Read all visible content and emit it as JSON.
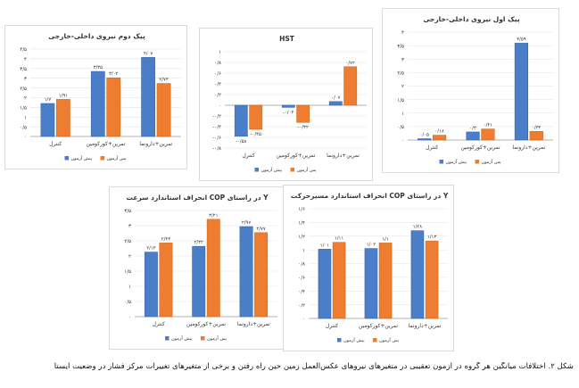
{
  "colors": {
    "before": "#4a7ec8",
    "after": "#ee7d31",
    "grid": "#e3e3e3",
    "text": "#333333",
    "axis": "#9a9a9a"
  },
  "legend": {
    "before": "پیش آزمون",
    "after": "پس آزمون"
  },
  "caption": "شکل ۲. اختلافات میانگین هر گروه در آزمون تعقیبی در متغیرهای نیروهای عکس‌العمل زمین حین راه رفتن و برخی از متغیرهای تغییرات مرکز فشار در وضعیت ایستا",
  "chart_data": [
    {
      "id": "peak1",
      "type": "bar",
      "title": "پیک اول نیروی داخلی-خارجی",
      "categories": [
        "کنترل",
        "تمرین+کورکومین",
        "تمرین+دارونما"
      ],
      "series": [
        {
          "name": "پیش آزمون",
          "values": [
            0.05,
            0.3,
            3.59
          ],
          "labels": [
            "۰/۰۵",
            "۰/۳",
            "۳/۵۹"
          ]
        },
        {
          "name": "پس آزمون",
          "values": [
            0.18,
            0.41,
            0.32
          ],
          "labels": [
            "۰/۱۸",
            "۰/۴۱",
            "۰/۳۲"
          ]
        }
      ],
      "ylim": [
        0,
        4
      ],
      "step": 0.5,
      "ticks": [
        "۰",
        "۰/۵",
        "۱",
        "۱/۵",
        "۲",
        "۲/۵",
        "۳",
        "۳/۵",
        "۴"
      ]
    },
    {
      "id": "hst",
      "type": "bar",
      "title": "HST",
      "categories": [
        "کنترل",
        "تمرین+کورکومین",
        "تمرین+دارونما"
      ],
      "series": [
        {
          "name": "پیش آزمون",
          "values": [
            -0.58,
            -0.04,
            0.07
          ],
          "labels": [
            "-۰/۵۸",
            "-۰/۰۴",
            "۰/۰۷"
          ]
        },
        {
          "name": "پس آزمون",
          "values": [
            -0.45,
            -0.32,
            0.72
          ],
          "labels": [
            "-۰/۴۵",
            "-۰/۳۲",
            "۰/۷۲"
          ]
        }
      ],
      "ylim": [
        -0.8,
        1
      ],
      "step": 0.2,
      "ticks": [
        "-۰/۸",
        "-۰/۶",
        "-۰/۴",
        "-۰/۲",
        "۰",
        "۰/۲",
        "۰/۴",
        "۰/۶",
        "۰/۸",
        "۱"
      ]
    },
    {
      "id": "peak2",
      "type": "bar",
      "title": "پیک دوم نیروی داخلی-خارجی",
      "categories": [
        "کنترل",
        "تمرین+کورکومین",
        "تمرین+دارونما"
      ],
      "series": [
        {
          "name": "پیش آزمون",
          "values": [
            1.7,
            3.35,
            4.07
          ],
          "labels": [
            "۱/۷",
            "۳/۳۵",
            "۴/۰۷"
          ]
        },
        {
          "name": "پس آزمون",
          "values": [
            1.91,
            3.02,
            2.73
          ],
          "labels": [
            "۱/۹۱",
            "۳/۰۲",
            "۲/۷۳"
          ]
        }
      ],
      "ylim": [
        0,
        4.5
      ],
      "step": 0.5,
      "ticks": [
        "۰",
        "۰/۵",
        "۱",
        "۱/۵",
        "۲",
        "۲/۵",
        "۳",
        "۳/۵",
        "۴",
        "۴/۵"
      ]
    },
    {
      "id": "copdev",
      "type": "bar",
      "title": "انحراف استاندارد مسیرحرکت COP در راستای Y",
      "categories": [
        "کنترل",
        "تمرین+کورکومین",
        "تمرین+دارونما"
      ],
      "series": [
        {
          "name": "پیش آزمون",
          "values": [
            1.01,
            1.02,
            1.28
          ],
          "labels": [
            "۱/۰۱",
            "۱/۰۲",
            "۱/۲۸"
          ]
        },
        {
          "name": "پس آزمون",
          "values": [
            1.11,
            1.1,
            1.13
          ],
          "labels": [
            "۱/۱۱",
            "۱/۱",
            "۱/۱۳"
          ]
        }
      ],
      "ylim": [
        0,
        1.6
      ],
      "step": 0.2,
      "ticks": [
        "۰",
        "۰/۲",
        "۰/۴",
        "۰/۶",
        "۰/۸",
        "۱",
        "۱/۲",
        "۱/۴",
        "۱/۶"
      ]
    },
    {
      "id": "copvel",
      "type": "bar",
      "title": "انحراف استاندارد سرعت COP در راستای Y",
      "categories": [
        "کنترل",
        "تمرین+کورکومین",
        "تمرین+دارونما"
      ],
      "series": [
        {
          "name": "پیش آزمون",
          "values": [
            2.13,
            2.32,
            2.97
          ],
          "labels": [
            "۲/۱۳",
            "۲/۳۲",
            "۲/۹۷"
          ]
        },
        {
          "name": "پس آزمون",
          "values": [
            2.43,
            3.21,
            2.77
          ],
          "labels": [
            "۲/۴۳",
            "۳/۲۱",
            "۲/۷۷"
          ]
        }
      ],
      "ylim": [
        0,
        3.5
      ],
      "step": 0.5,
      "ticks": [
        "۰",
        "۰/۵",
        "۱",
        "۱/۵",
        "۲",
        "۲/۵",
        "۳",
        "۳/۵"
      ]
    }
  ]
}
